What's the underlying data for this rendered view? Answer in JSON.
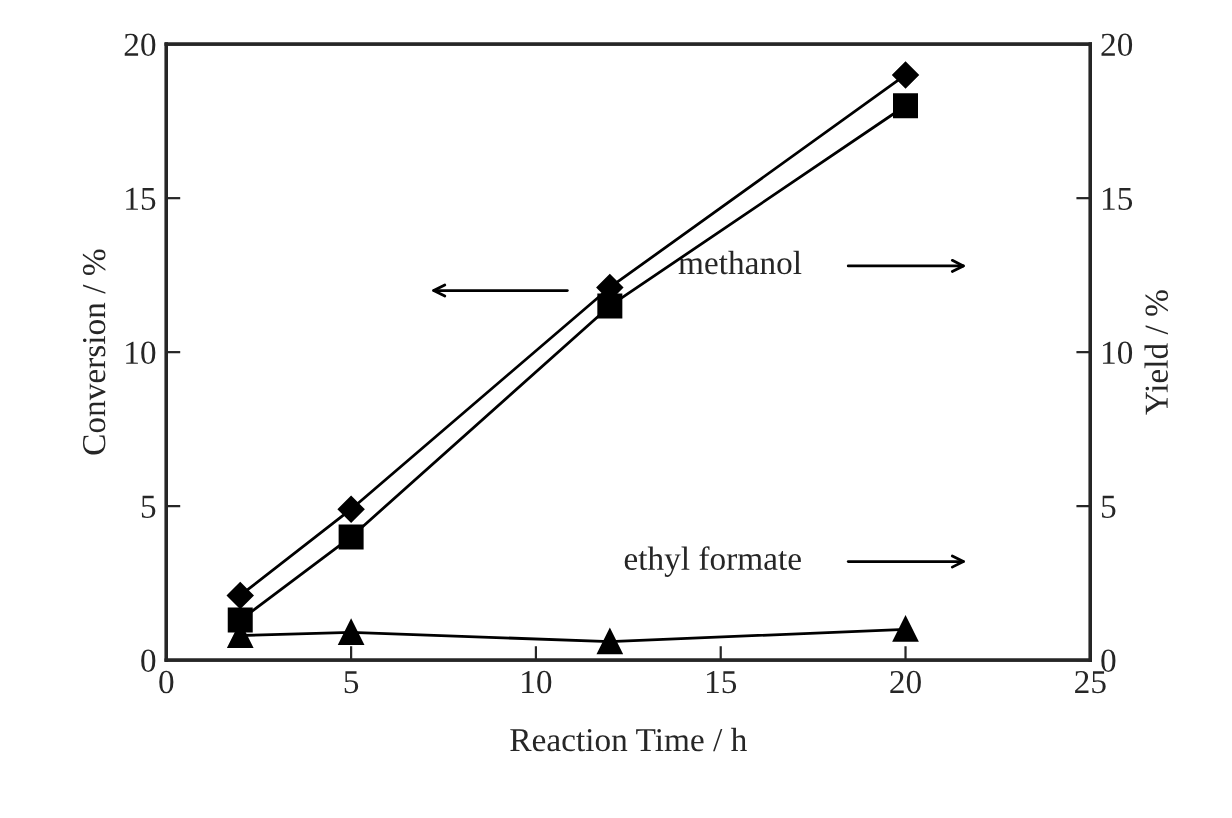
{
  "chart_data": {
    "type": "line",
    "xlabel": "Reaction Time / h",
    "ylabel": "Conversion / %",
    "y2label": "Yield / %",
    "x": [
      2,
      5,
      12,
      20
    ],
    "series": [
      {
        "color": "#000000",
        "marker": "diamond",
        "values": [
          2.1,
          4.9,
          12.1,
          19.0
        ]
      },
      {
        "color": "#000000",
        "marker": "square",
        "axis": "y2",
        "values": [
          1.3,
          4.0,
          11.5,
          18.0
        ]
      },
      {
        "color": "#000000",
        "marker": "triangle",
        "axis": "y2",
        "values": [
          0.8,
          0.9,
          0.6,
          1.0
        ]
      }
    ],
    "annotations": [
      "methanol",
      "ethyl formate"
    ],
    "xlim": [
      0,
      25
    ],
    "xticks": [
      0,
      5,
      10,
      15,
      20,
      25
    ],
    "ylim": [
      0,
      20
    ],
    "yticks": [
      0,
      5,
      10,
      15,
      20
    ],
    "y2lim": [
      0,
      20
    ],
    "y2ticks": [
      0,
      5,
      10,
      15,
      20
    ],
    "grid": false,
    "legend": false,
    "line_style": "solid"
  }
}
